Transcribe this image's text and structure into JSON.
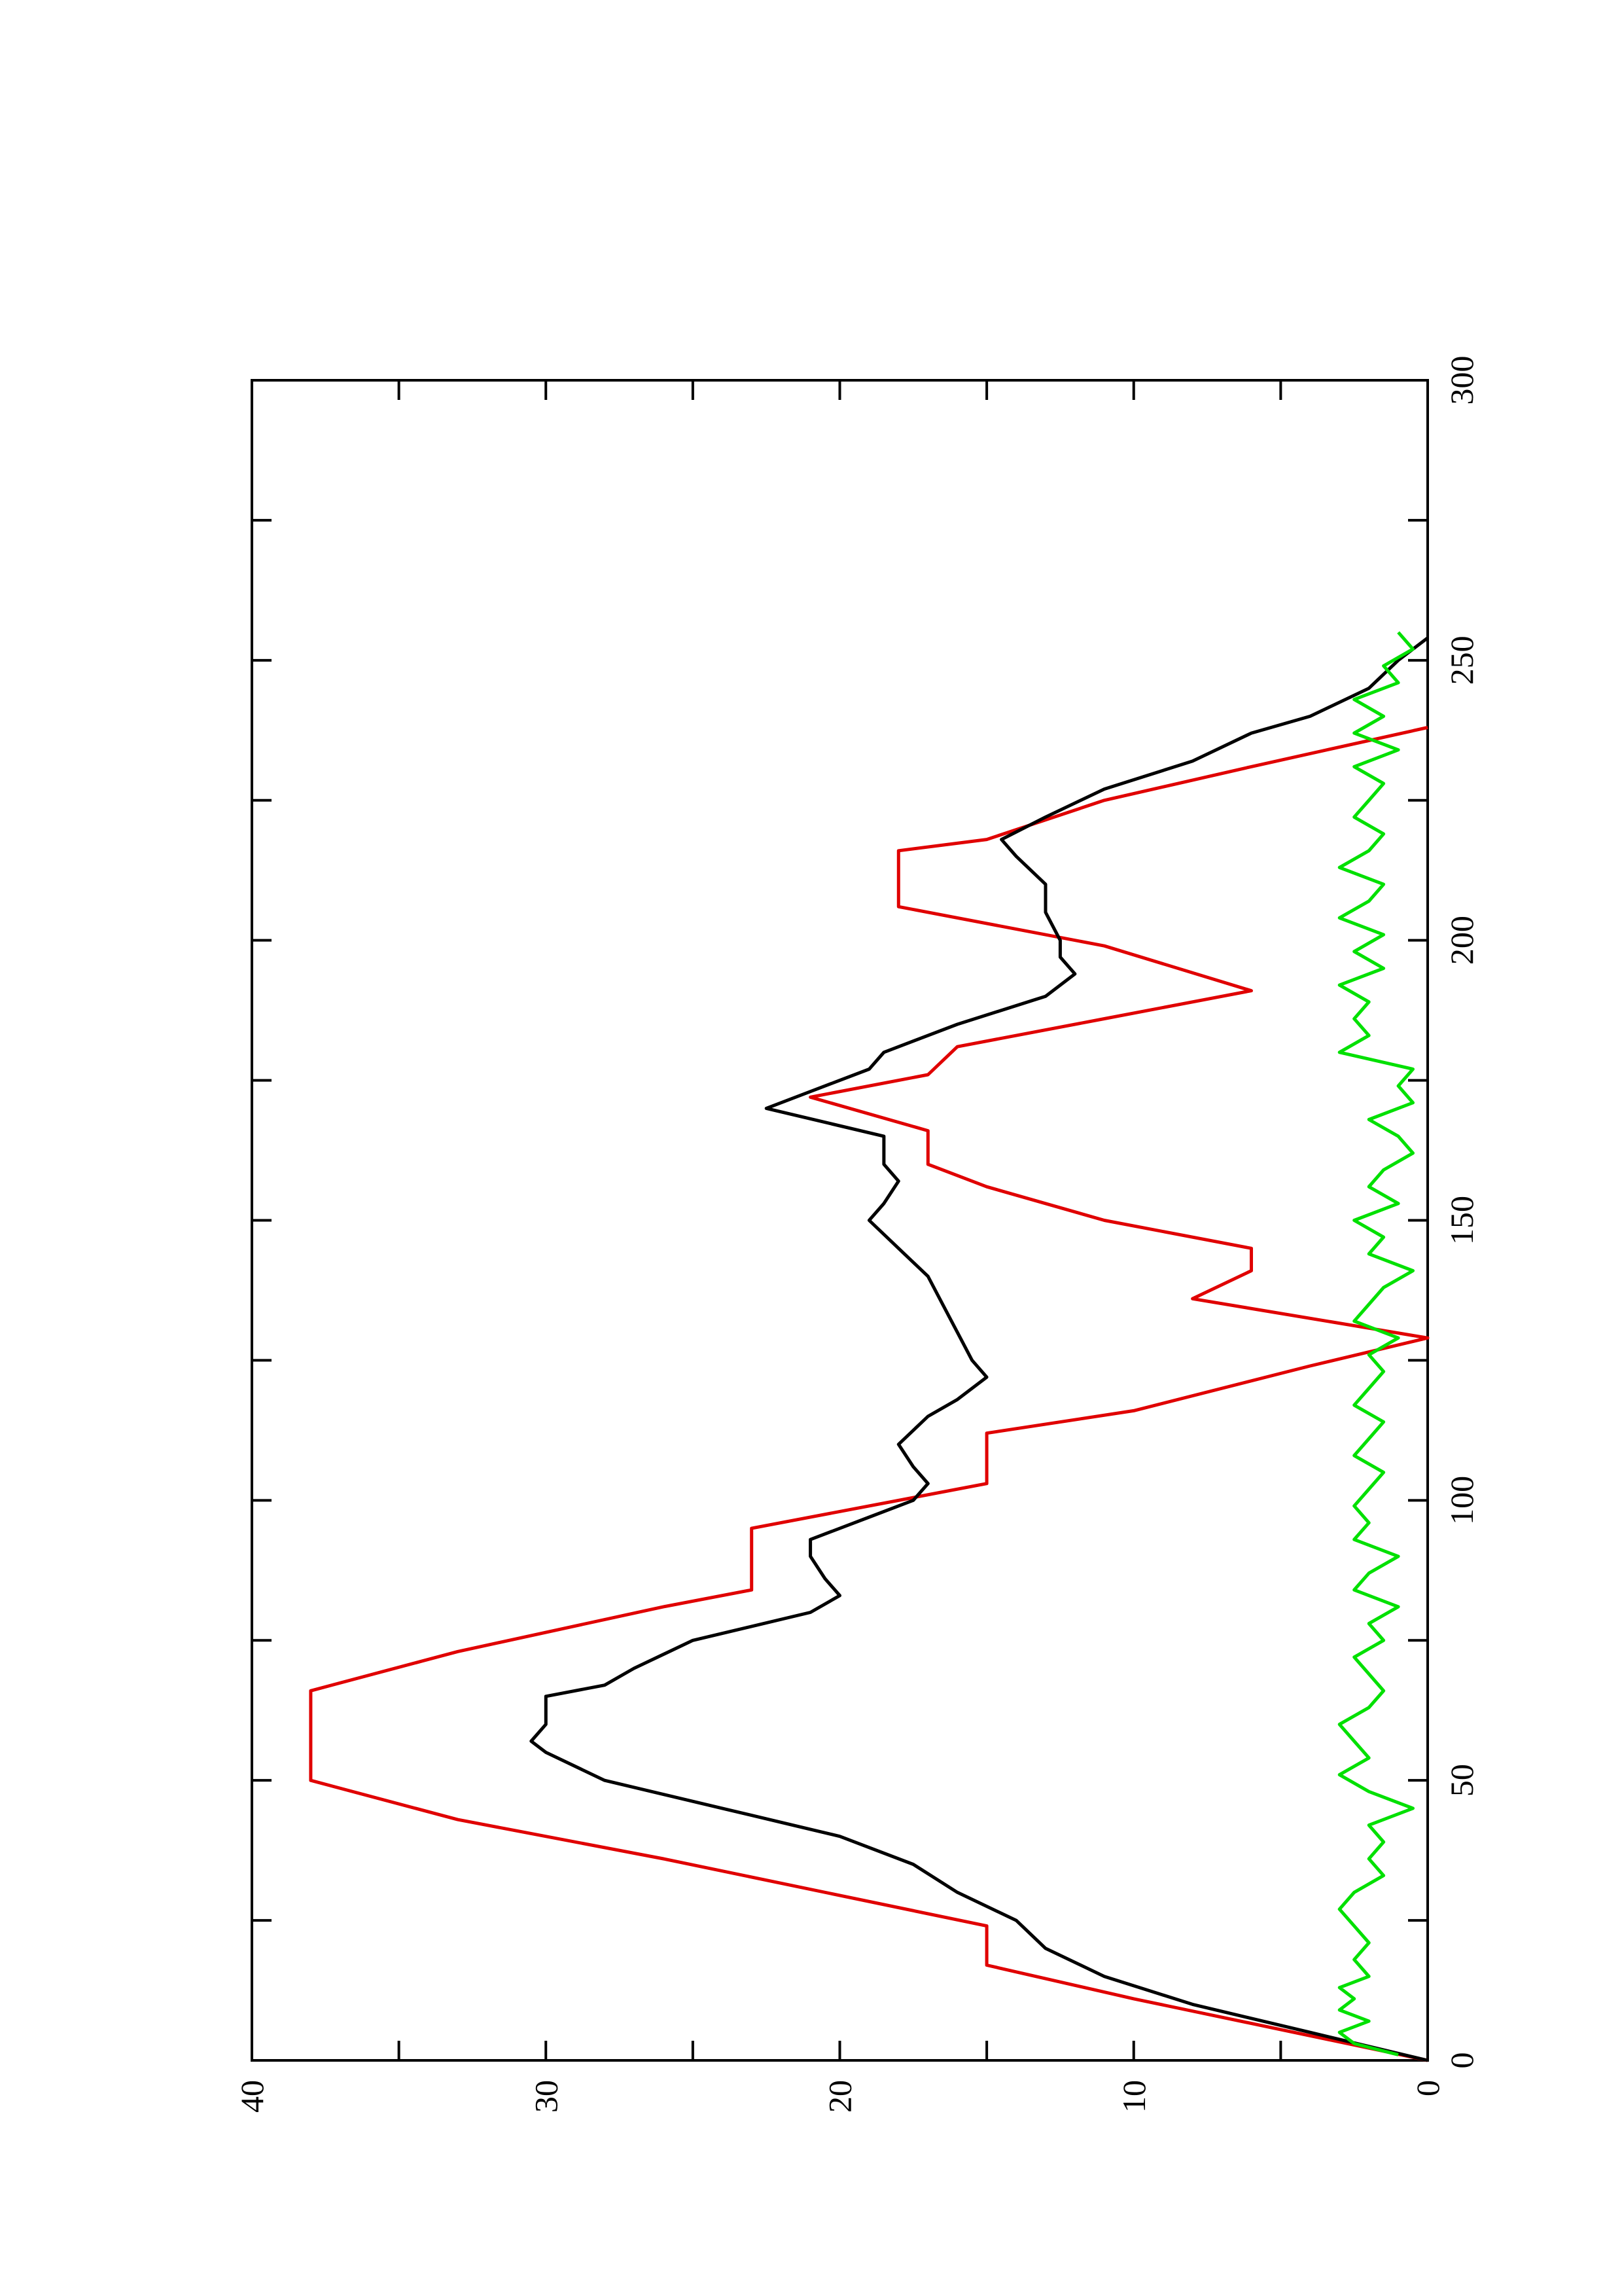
{
  "chart_data": {
    "type": "line",
    "xlim": [
      0,
      300
    ],
    "xticks": [
      0,
      50,
      100,
      150,
      200,
      250,
      300
    ],
    "xminorticks": [
      25,
      75,
      125,
      175,
      225,
      275
    ],
    "ylim": [
      0,
      40
    ],
    "yticks": [
      0,
      10,
      20,
      30,
      40
    ],
    "yminorticks": [
      5,
      15,
      25,
      35
    ],
    "series": [
      {
        "color": "#e00000",
        "x": [
          0,
          11,
          17,
          24,
          36,
          43,
          50,
          66,
          73,
          81,
          84,
          95,
          103,
          112,
          116,
          124,
          129,
          136,
          141,
          145,
          150,
          156,
          160,
          166,
          172,
          176,
          181,
          186,
          191,
          199,
          206,
          216,
          218,
          225,
          231,
          238
        ],
        "values": [
          0,
          10,
          15,
          15,
          26,
          33,
          38,
          38,
          33,
          26,
          23,
          23,
          15,
          15,
          10,
          4,
          0,
          8,
          6,
          6,
          11,
          15,
          17,
          17,
          21,
          17,
          16,
          11,
          6,
          11,
          18,
          18,
          15,
          11,
          6,
          0
        ]
      },
      {
        "color": "#000000",
        "x": [
          0,
          5,
          10,
          15,
          20,
          25,
          30,
          35,
          40,
          45,
          50,
          55,
          57,
          60,
          65,
          67,
          70,
          75,
          80,
          83,
          86,
          90,
          93,
          97,
          100,
          103,
          106,
          110,
          115,
          118,
          122,
          125,
          130,
          135,
          140,
          145,
          150,
          153,
          157,
          160,
          165,
          170,
          173,
          177,
          180,
          185,
          190,
          194,
          197,
          200,
          205,
          210,
          215,
          218,
          222,
          227,
          232,
          237,
          240,
          245,
          250,
          254
        ],
        "values": [
          0,
          4,
          8,
          11,
          13,
          14,
          16,
          17.5,
          20,
          24,
          28,
          30,
          30.5,
          30,
          30,
          28,
          27,
          25,
          21,
          20,
          20.5,
          21,
          21,
          19,
          17.5,
          17,
          17.5,
          18,
          17,
          16,
          15,
          15.5,
          16,
          16.5,
          17,
          18,
          19,
          18.5,
          18,
          18.5,
          18.5,
          22.5,
          21,
          19,
          18.5,
          16,
          13,
          12,
          12.5,
          12.5,
          13,
          13,
          14,
          14.5,
          13,
          11,
          8,
          6,
          4,
          2,
          1,
          0
        ]
      },
      {
        "color": "#00e000",
        "x": [
          1,
          3,
          5,
          7,
          9,
          11,
          13,
          15,
          18,
          21,
          24,
          27,
          30,
          33,
          36,
          39,
          42,
          45,
          48,
          51,
          54,
          57,
          60,
          63,
          66,
          69,
          72,
          75,
          78,
          81,
          84,
          87,
          90,
          93,
          96,
          99,
          102,
          105,
          108,
          111,
          114,
          117,
          120,
          123,
          126,
          129,
          132,
          135,
          138,
          141,
          144,
          147,
          150,
          153,
          156,
          159,
          162,
          165,
          168,
          171,
          174,
          177,
          180,
          183,
          186,
          189,
          192,
          195,
          198,
          201,
          204,
          207,
          210,
          213,
          216,
          219,
          222,
          225,
          228,
          231,
          234,
          237,
          240,
          243,
          246,
          249,
          252,
          255
        ],
        "values": [
          1,
          2.5,
          3,
          2,
          3,
          2.5,
          3,
          2,
          2.5,
          2,
          2.5,
          3,
          2.5,
          1.5,
          2,
          1.5,
          2,
          0.5,
          2,
          3,
          2,
          2.5,
          3,
          2,
          1.5,
          2,
          2.5,
          1.5,
          2,
          1,
          2.5,
          2,
          1,
          2.5,
          2,
          2.5,
          2,
          1.5,
          2.5,
          2,
          1.5,
          2.5,
          2,
          1.5,
          2,
          1,
          2.5,
          2,
          1.5,
          0.5,
          2,
          1.5,
          2.5,
          1,
          2,
          1.5,
          0.5,
          1,
          2,
          0.5,
          1,
          0.5,
          3,
          2,
          2.5,
          2,
          3,
          1.5,
          2.5,
          1.5,
          3,
          2,
          1.5,
          3,
          2,
          1.5,
          2.5,
          2,
          1.5,
          2.5,
          1,
          2.5,
          1.5,
          2.5,
          1,
          1.5,
          0.5,
          1
        ]
      }
    ]
  }
}
